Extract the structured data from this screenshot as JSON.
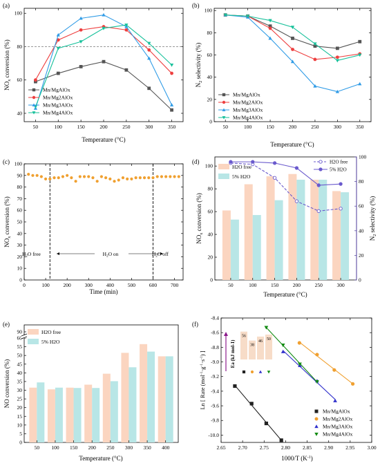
{
  "chart_data": [
    {
      "panel": "(a)",
      "type": "line",
      "x": [
        50,
        100,
        150,
        200,
        250,
        300,
        350
      ],
      "series": [
        {
          "name": "Mn/MgAlOx",
          "color": "#555555",
          "marker": "square",
          "values": [
            59,
            64,
            68,
            71,
            66,
            55,
            42
          ]
        },
        {
          "name": "Mn/Mg2AlOx",
          "color": "#ee3f3f",
          "marker": "circle",
          "values": [
            60,
            84,
            90,
            92,
            90,
            78,
            64
          ]
        },
        {
          "name": "Mn/Mg3AlOx",
          "color": "#2f9be6",
          "marker": "triangle-up",
          "values": [
            43,
            87,
            97,
            99,
            92,
            73,
            45
          ]
        },
        {
          "name": "Mn/Mg4AlOx",
          "color": "#16c09a",
          "marker": "triangle-down",
          "values": [
            44,
            79,
            83,
            91,
            93,
            82,
            69
          ]
        }
      ],
      "reference_line": 80,
      "xlabel": "Temperature (°C)",
      "ylabel": "NOx conversion (%)",
      "xticks": [
        50,
        100,
        150,
        200,
        250,
        300,
        350
      ],
      "yticks": [
        40,
        60,
        80,
        100
      ],
      "xlim": [
        25,
        375
      ],
      "ylim": [
        35,
        103
      ],
      "legend": "bottom-left"
    },
    {
      "panel": "(b)",
      "type": "line",
      "x": [
        50,
        100,
        150,
        200,
        250,
        300,
        350
      ],
      "series": [
        {
          "name": "Mn/MgAlOx",
          "color": "#555555",
          "marker": "square",
          "values": [
            96,
            95,
            86,
            75,
            68,
            66,
            72
          ]
        },
        {
          "name": "Mn/Mg2AlOx",
          "color": "#ee3f3f",
          "marker": "circle",
          "values": [
            96,
            95,
            84,
            65,
            56,
            58,
            61
          ]
        },
        {
          "name": "Mn/Mg3AlOx",
          "color": "#2f9be6",
          "marker": "triangle-up",
          "values": [
            96,
            94,
            75,
            54,
            32,
            27,
            34
          ]
        },
        {
          "name": "Mn/Mg4AlOx",
          "color": "#16c09a",
          "marker": "triangle-down",
          "values": [
            96,
            95,
            91,
            85,
            70,
            55,
            60
          ]
        }
      ],
      "xlabel": "Temperature (°C)",
      "ylabel": "N2 selectivity (%)",
      "xticks": [
        50,
        100,
        150,
        200,
        250,
        300,
        350
      ],
      "yticks": [
        0,
        20,
        40,
        60,
        80,
        100
      ],
      "xlim": [
        25,
        375
      ],
      "ylim": [
        0,
        102
      ],
      "legend": "bottom-left"
    },
    {
      "panel": "(c)",
      "type": "scatter",
      "color": "#f0a030",
      "x": [
        20,
        40,
        60,
        80,
        100,
        120,
        140,
        160,
        180,
        200,
        220,
        240,
        260,
        280,
        300,
        320,
        340,
        360,
        380,
        400,
        420,
        440,
        460,
        480,
        500,
        520,
        540,
        560,
        580,
        600,
        620,
        640,
        660,
        680,
        700,
        720
      ],
      "values": [
        91,
        90,
        90,
        89,
        87,
        87,
        88,
        88,
        89,
        90,
        88,
        85,
        89,
        89,
        89,
        88,
        85,
        89,
        88,
        87,
        85,
        86,
        88,
        87,
        87,
        88,
        88,
        88,
        88,
        88,
        89,
        89,
        89,
        89,
        89,
        89
      ],
      "vlines": [
        120,
        600
      ],
      "annotations": [
        "H2O free",
        "H2O on",
        "H2O off"
      ],
      "xlabel": "Time (min)",
      "ylabel": "NOx conversion (%)",
      "xticks": [
        0,
        100,
        200,
        300,
        400,
        500,
        600,
        700
      ],
      "yticks": [
        0,
        10,
        20,
        30,
        40,
        50,
        60,
        70,
        80,
        90,
        100
      ],
      "xlim": [
        0,
        740
      ],
      "ylim": [
        0,
        100
      ]
    },
    {
      "panel": "(d)",
      "type": "bar",
      "categories": [
        50,
        100,
        150,
        200,
        250,
        300
      ],
      "series": [
        {
          "name": "H2O free",
          "color": "#fbd5c0",
          "values": [
            61,
            84,
            91,
            93,
            88,
            78
          ]
        },
        {
          "name": "5% H2O",
          "color": "#b8e6e6",
          "values": [
            53,
            57,
            70,
            88,
            88,
            77
          ]
        }
      ],
      "line_series": [
        {
          "name": "H2O free",
          "color": "#6a5acd",
          "dashed": true,
          "values": [
            95,
            94,
            83,
            64,
            56,
            58
          ]
        },
        {
          "name": "5% H2O",
          "color": "#6a5acd",
          "dashed": false,
          "values": [
            96,
            96,
            95,
            91,
            77,
            78
          ]
        }
      ],
      "xlabel": "Temperature (°C)",
      "ylabel": "NOx conversion (%)",
      "y2label": "N2 selectivity (%)",
      "yticks": [
        0,
        20,
        40,
        60,
        80,
        100
      ],
      "y2ticks": [
        0,
        20,
        40,
        60,
        80,
        100
      ],
      "ylim": [
        0,
        108
      ],
      "y2lim": [
        0,
        100
      ],
      "legend": "top-left and top-right"
    },
    {
      "panel": "(e)",
      "type": "bar",
      "categories": [
        50,
        100,
        150,
        200,
        250,
        300,
        350,
        400
      ],
      "series": [
        {
          "name": "H2O free",
          "color": "#fbd5c0",
          "values": [
            31.5,
            30.5,
            31.5,
            33.2,
            39.5,
            51.5,
            56.5,
            49.5
          ]
        },
        {
          "name": "5% H2O",
          "color": "#b8e6e6",
          "values": [
            34.5,
            31.5,
            31.3,
            31.3,
            35.2,
            43.2,
            52.2,
            49.5
          ]
        }
      ],
      "xlabel": "Temperature (°C)",
      "ylabel": "NO conversion (%)",
      "yticks": [
        0,
        5,
        10,
        15,
        20,
        25,
        30,
        35,
        40,
        45,
        50,
        55,
        60,
        90
      ],
      "ylim": [
        0,
        90
      ],
      "axis_break": [
        60,
        85
      ],
      "legend": "top-left"
    },
    {
      "panel": "(f)",
      "type": "scatter",
      "series": [
        {
          "name": "Mn/MgAlOx",
          "color": "#222222",
          "marker": "square",
          "x": [
            2.682,
            2.721,
            2.755,
            2.79
          ],
          "values": [
            -9.33,
            -9.57,
            -9.84,
            -10.07
          ]
        },
        {
          "name": "Mn/Mg2AlOx",
          "color": "#f0a030",
          "marker": "circle",
          "x": [
            2.832,
            2.873,
            2.913,
            2.956
          ],
          "values": [
            -8.74,
            -8.9,
            -9.11,
            -9.3
          ]
        },
        {
          "name": "Mn/Mg3AlOx",
          "color": "#3333cc",
          "marker": "triangle-up",
          "x": [
            2.794,
            2.833,
            2.873,
            2.915
          ],
          "values": [
            -8.86,
            -9.05,
            -9.26,
            -9.53
          ]
        },
        {
          "name": "Mn/Mg4AlOx",
          "color": "#118a11",
          "marker": "triangle-down",
          "x": [
            2.755,
            2.794,
            2.833,
            2.873
          ],
          "values": [
            -8.53,
            -8.77,
            -9.03,
            -9.27
          ]
        }
      ],
      "inset": {
        "label": "Ea (kJ mol-1)",
        "values": [
          56,
          38,
          46,
          50
        ],
        "colors": [
          "#222222",
          "#f0a030",
          "#3333cc",
          "#118a11"
        ],
        "markers": [
          "square",
          "circle",
          "triangle-up",
          "triangle-down"
        ]
      },
      "xlabel": "1000/T (K-1)",
      "ylabel": "Ln [ Rate (mol-1 g-1 s-1) ]",
      "xticks": [
        2.65,
        2.7,
        2.75,
        2.8,
        2.85,
        2.9,
        2.95,
        3.0
      ],
      "yticks": [
        -10.0,
        -9.8,
        -9.6,
        -9.4,
        -9.2,
        -9.0,
        -8.8,
        -8.6,
        -8.4
      ],
      "xlim": [
        2.65,
        3.0
      ],
      "ylim": [
        -10.1,
        -8.4
      ],
      "legend": "bottom-right"
    }
  ]
}
